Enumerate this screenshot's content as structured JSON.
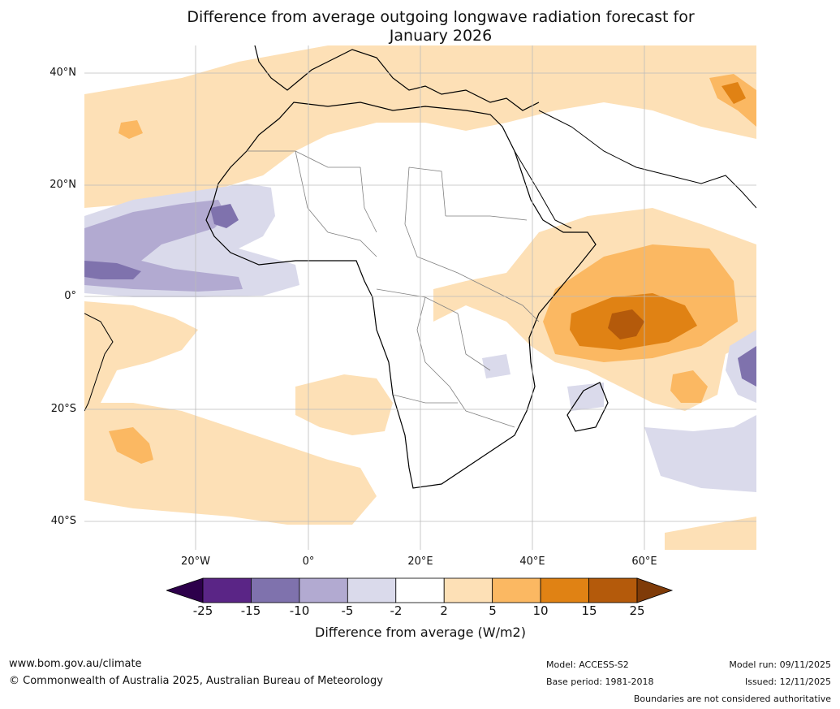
{
  "title_line1": "Difference from average outgoing longwave radiation forecast for",
  "title_line2": "January 2026",
  "map": {
    "lat_labels": [
      "40°N",
      "20°N",
      "0°",
      "20°S",
      "40°S"
    ],
    "lon_labels": [
      "20°W",
      "0°",
      "20°E",
      "40°E",
      "60°E"
    ]
  },
  "colorbar": {
    "ticks": [
      "-25",
      "-15",
      "-10",
      "-5",
      "-2",
      "2",
      "5",
      "10",
      "15",
      "25"
    ],
    "colors": [
      "#5a2586",
      "#7f72ad",
      "#b2aad1",
      "#dadaeb",
      "#ffffff",
      "#fde0b6",
      "#fbb862",
      "#e08214",
      "#b45a0b"
    ],
    "under_color": "#2d004b",
    "over_color": "#7f3b08",
    "title": "Difference from average (W/m2)"
  },
  "footer": {
    "website": "www.bom.gov.au/climate",
    "copyright": "© Commonwealth of Australia 2025, Australian Bureau of Meteorology",
    "model": "Model: ACCESS-S2",
    "base_period": "Base period: 1981-2018",
    "model_run": "Model run: 09/11/2025",
    "issued": "Issued: 12/11/2025",
    "disclaimer": "Boundaries are not considered authoritative"
  }
}
